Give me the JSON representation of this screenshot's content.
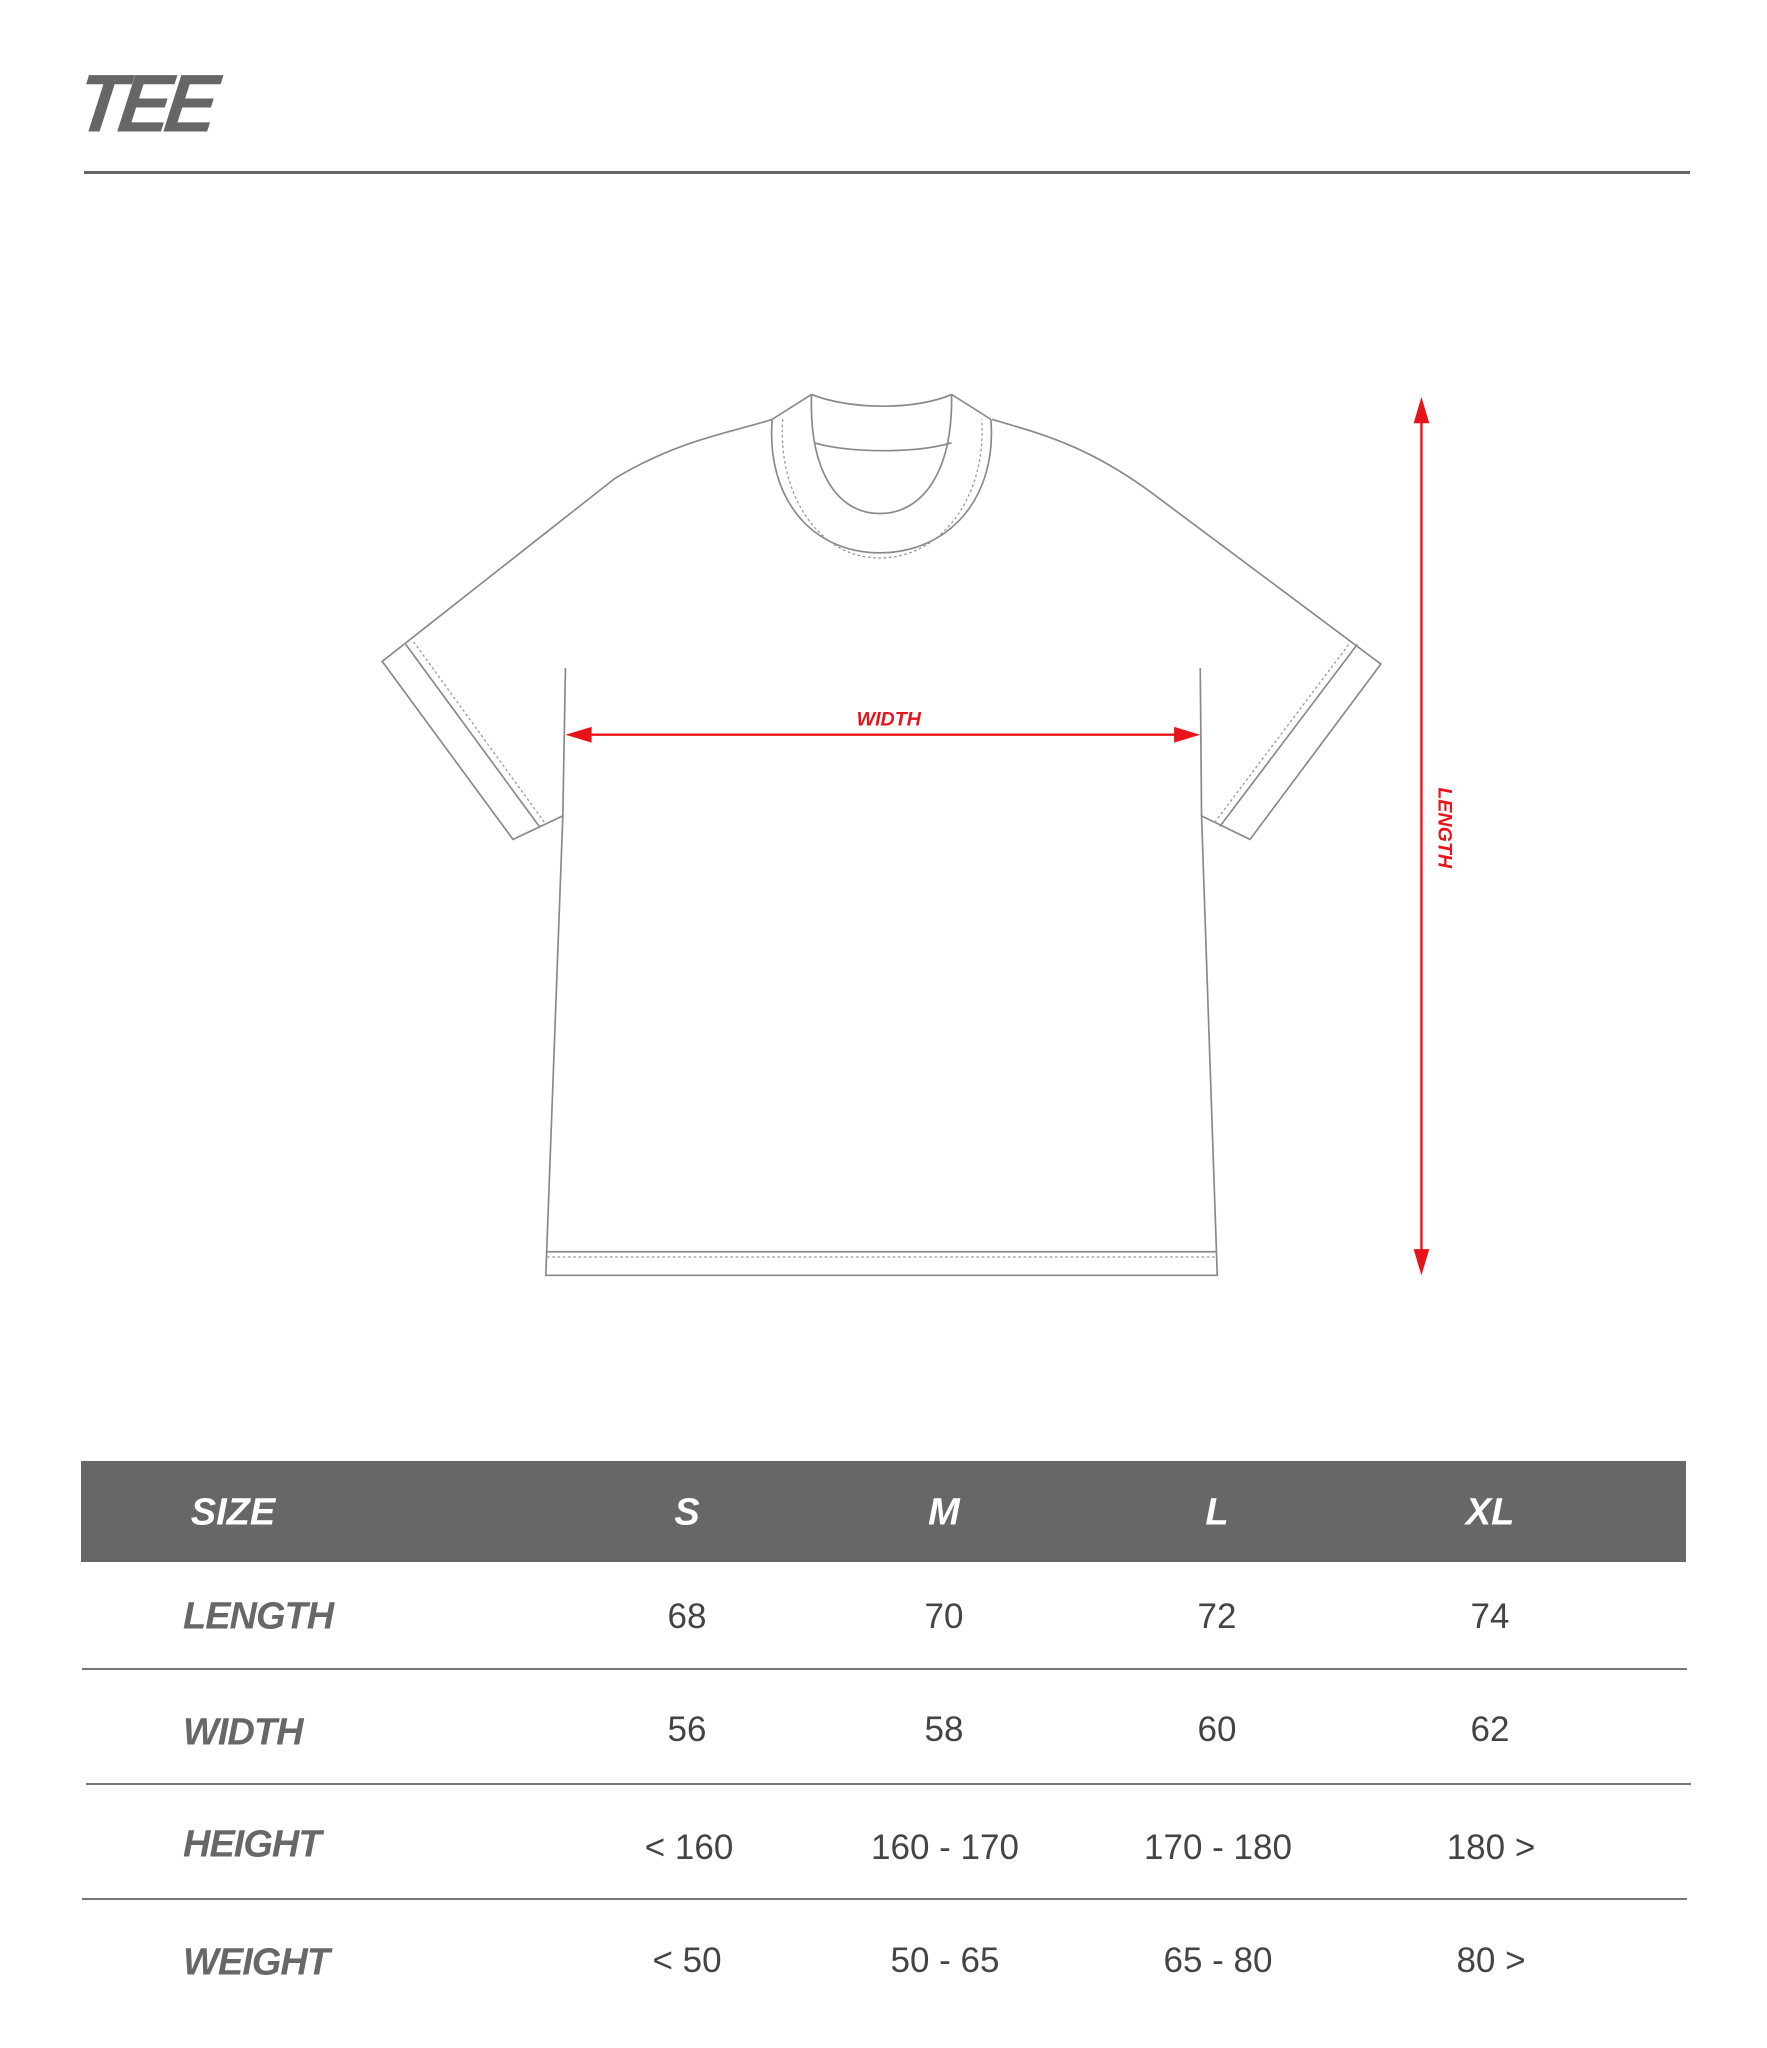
{
  "title": "TEE",
  "diagram": {
    "width_label": "WIDTH",
    "length_label": "LENGTH",
    "arrow_color": "#e8141c",
    "outline_color": "#8a8a8a"
  },
  "table": {
    "header_color": "#676767",
    "columns": [
      "SIZE",
      "S",
      "M",
      "L",
      "XL"
    ],
    "rows": [
      {
        "label": "LENGTH",
        "values": [
          "68",
          "70",
          "72",
          "74"
        ]
      },
      {
        "label": "WIDTH",
        "values": [
          "56",
          "58",
          "60",
          "62"
        ]
      },
      {
        "label": "HEIGHT",
        "values": [
          "< 160",
          "160 - 170",
          "170 - 180",
          "180 >"
        ]
      },
      {
        "label": "WEIGHT",
        "values": [
          "< 50",
          "50 - 65",
          "65 - 80",
          "80 >"
        ]
      }
    ]
  }
}
